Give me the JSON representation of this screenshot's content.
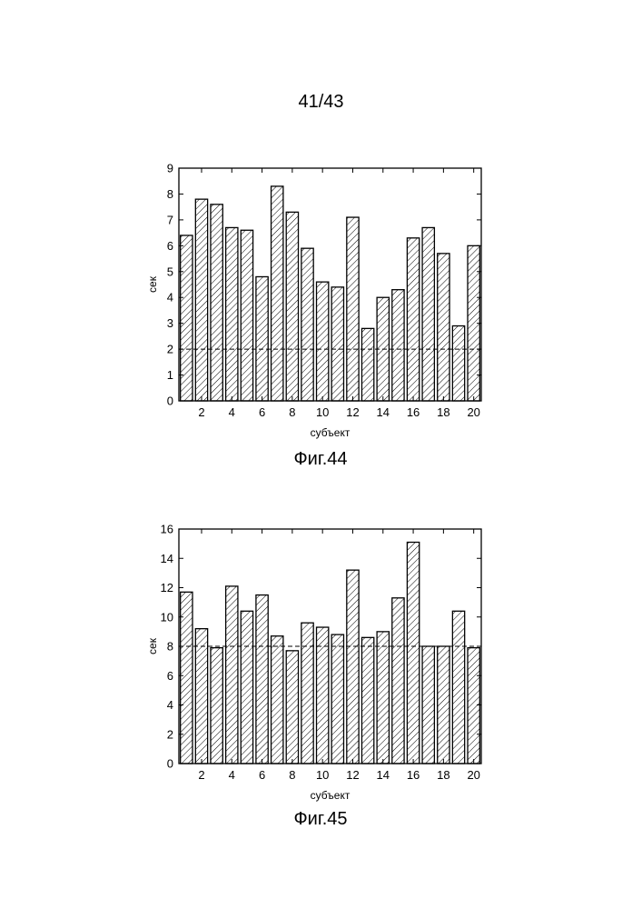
{
  "page": {
    "number": "41/43"
  },
  "chart_data": [
    {
      "type": "bar",
      "figure_caption": "Фиг.44",
      "xlabel": "субъект",
      "ylabel": "сек",
      "ylim": [
        0,
        9
      ],
      "yticks": [
        0,
        1,
        2,
        3,
        4,
        5,
        6,
        7,
        8,
        9
      ],
      "xticks": [
        2,
        4,
        6,
        8,
        10,
        12,
        14,
        16,
        18,
        20
      ],
      "x": [
        1,
        2,
        3,
        4,
        5,
        6,
        7,
        8,
        9,
        10,
        11,
        12,
        13,
        14,
        15,
        16,
        17,
        18,
        19,
        20
      ],
      "values": [
        6.4,
        7.8,
        7.6,
        6.7,
        6.6,
        4.8,
        8.3,
        7.3,
        5.9,
        4.6,
        4.4,
        7.1,
        2.8,
        4.0,
        4.3,
        6.3,
        6.7,
        5.7,
        2.9,
        6.0
      ],
      "reference_line": 2,
      "bar_fill": "hatched",
      "grid": false
    },
    {
      "type": "bar",
      "figure_caption": "Фиг.45",
      "xlabel": "субъект",
      "ylabel": "сек",
      "ylim": [
        0,
        16
      ],
      "yticks": [
        0,
        2,
        4,
        6,
        8,
        10,
        12,
        14,
        16
      ],
      "xticks": [
        2,
        4,
        6,
        8,
        10,
        12,
        14,
        16,
        18,
        20
      ],
      "x": [
        1,
        2,
        3,
        4,
        5,
        6,
        7,
        8,
        9,
        10,
        11,
        12,
        13,
        14,
        15,
        16,
        17,
        18,
        19,
        20
      ],
      "values": [
        11.7,
        9.2,
        7.9,
        12.1,
        10.4,
        11.5,
        8.7,
        7.7,
        9.6,
        9.3,
        8.8,
        13.2,
        8.6,
        9.0,
        11.3,
        15.1,
        8.0,
        8.0,
        10.4,
        7.9
      ],
      "reference_line": 8,
      "bar_fill": "hatched",
      "grid": false
    }
  ]
}
